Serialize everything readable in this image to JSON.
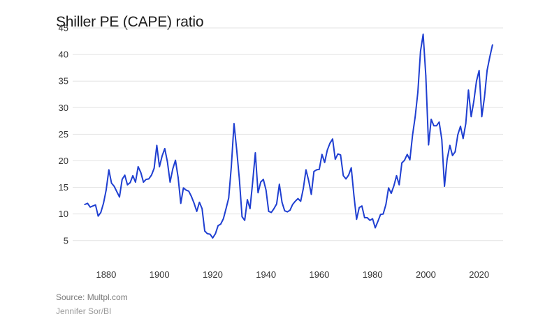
{
  "colors": {
    "line": "#1f3fd1",
    "grid": "#e3e3e3",
    "text": "#333333",
    "source": "#7a7a7a"
  },
  "chart_data": {
    "type": "line",
    "title": "Shiller PE (CAPE) ratio",
    "xlabel": "",
    "ylabel": "",
    "xlim": [
      1869,
      2029
    ],
    "ylim": [
      3,
      45
    ],
    "x_ticks": [
      1880,
      1900,
      1920,
      1940,
      1960,
      1980,
      2000,
      2020
    ],
    "y_ticks": [
      5,
      10,
      15,
      20,
      25,
      30,
      35,
      40,
      45
    ],
    "grid": "horizontal",
    "legend": "none",
    "series": [
      {
        "x": [
          1872,
          1873,
          1874,
          1875,
          1876,
          1877,
          1878,
          1879,
          1880,
          1881,
          1882,
          1883,
          1884,
          1885,
          1886,
          1887,
          1888,
          1889,
          1890,
          1891,
          1892,
          1893,
          1894,
          1895,
          1896,
          1897,
          1898,
          1899,
          1900,
          1901,
          1902,
          1903,
          1904,
          1905,
          1906,
          1907,
          1908,
          1909,
          1910,
          1911,
          1912,
          1913,
          1914,
          1915,
          1916,
          1917,
          1918,
          1919,
          1920,
          1921,
          1922,
          1923,
          1924,
          1925,
          1926,
          1927,
          1928,
          1929,
          1930,
          1931,
          1932,
          1933,
          1934,
          1935,
          1936,
          1937,
          1938,
          1939,
          1940,
          1941,
          1942,
          1943,
          1944,
          1945,
          1946,
          1947,
          1948,
          1949,
          1950,
          1951,
          1952,
          1953,
          1954,
          1955,
          1956,
          1957,
          1958,
          1959,
          1960,
          1961,
          1962,
          1963,
          1964,
          1965,
          1966,
          1967,
          1968,
          1969,
          1970,
          1971,
          1972,
          1973,
          1974,
          1975,
          1976,
          1977,
          1978,
          1979,
          1980,
          1981,
          1982,
          1983,
          1984,
          1985,
          1986,
          1987,
          1988,
          1989,
          1990,
          1991,
          1992,
          1993,
          1994,
          1995,
          1996,
          1997,
          1998,
          1999,
          2000,
          2001,
          2002,
          2003,
          2004,
          2005,
          2006,
          2007,
          2008,
          2009,
          2010,
          2011,
          2012,
          2013,
          2014,
          2015,
          2016,
          2017,
          2018,
          2019,
          2020,
          2021,
          2022,
          2023,
          2024,
          2025
        ],
        "values": [
          11.8,
          12.0,
          11.3,
          11.5,
          11.7,
          9.6,
          10.3,
          12.0,
          14.5,
          18.3,
          15.8,
          15.2,
          14.2,
          13.2,
          16.5,
          17.3,
          15.5,
          15.9,
          17.2,
          16.0,
          18.9,
          17.8,
          16.0,
          16.5,
          16.6,
          17.3,
          18.6,
          22.9,
          18.9,
          20.9,
          22.3,
          19.8,
          16.0,
          18.5,
          20.1,
          16.9,
          12.0,
          14.9,
          14.5,
          14.3,
          13.3,
          12.0,
          10.5,
          12.2,
          11.0,
          6.8,
          6.3,
          6.2,
          5.5,
          6.3,
          7.8,
          8.1,
          9.1,
          11.0,
          13.0,
          19.0,
          27.0,
          22.0,
          16.5,
          9.5,
          8.8,
          12.7,
          11.0,
          16.0,
          21.5,
          14.0,
          16.0,
          16.5,
          14.5,
          10.5,
          10.3,
          11.0,
          11.9,
          15.6,
          12.2,
          10.6,
          10.4,
          10.7,
          11.8,
          12.4,
          12.9,
          12.4,
          14.8,
          18.3,
          16.3,
          13.7,
          18.0,
          18.3,
          18.4,
          21.2,
          19.7,
          22.0,
          23.3,
          24.1,
          20.3,
          21.3,
          21.1,
          17.2,
          16.6,
          17.3,
          18.7,
          13.5,
          9.0,
          11.2,
          11.5,
          9.3,
          9.3,
          8.8,
          9.1,
          7.4,
          8.6,
          9.9,
          10.0,
          11.8,
          14.9,
          13.9,
          15.3,
          17.2,
          15.5,
          19.6,
          20.1,
          21.2,
          20.2,
          24.8,
          28.3,
          32.9,
          40.6,
          43.8,
          36.0,
          23.0,
          27.8,
          26.6,
          26.6,
          27.3,
          24.0,
          15.2,
          20.3,
          22.9,
          21.0,
          21.7,
          24.9,
          26.5,
          24.2,
          27.0,
          33.3,
          28.3,
          31.2,
          35.0,
          37.0,
          28.3,
          31.9,
          37.0,
          39.5,
          41.8
        ]
      }
    ]
  },
  "footer": {
    "source": "Source: Multpl.com",
    "credit": "Jennifer Sor/BI"
  }
}
